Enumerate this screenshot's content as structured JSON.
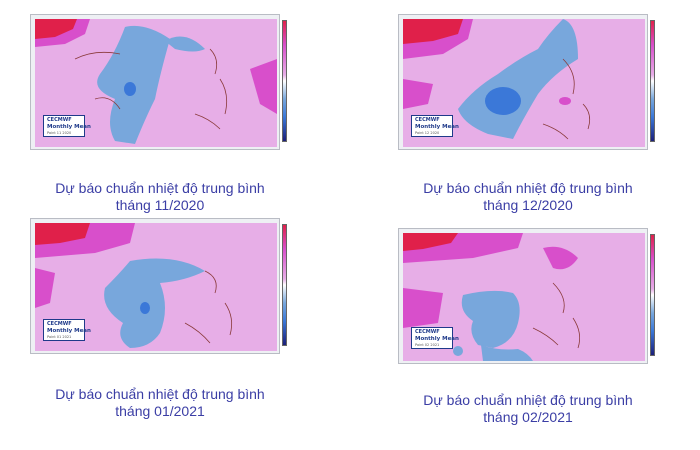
{
  "panels": [
    {
      "caption_line1": "Dự báo chuẩn nhiệt độ trung bình",
      "caption_line2": "tháng 11/2020",
      "legend_title": "Monthly Mean",
      "legend_brand": "CECMWF",
      "legend_sub": "Point 11 2020"
    },
    {
      "caption_line1": "Dự báo chuẩn nhiệt độ trung bình",
      "caption_line2": "tháng 12/2020",
      "legend_title": "Monthly Mean",
      "legend_brand": "CECMWF",
      "legend_sub": "Point 12 2020"
    },
    {
      "caption_line1": "Dự báo chuẩn nhiệt độ trung bình",
      "caption_line2": "tháng 01/2021",
      "legend_title": "Monthly Mean",
      "legend_brand": "CECMWF",
      "legend_sub": "Point 01 2021"
    },
    {
      "caption_line1": "Dự báo chuẩn nhiệt độ trung bình",
      "caption_line2": "tháng 02/2021",
      "legend_title": "Monthly Mean",
      "legend_brand": "CECMWF",
      "legend_sub": "Point 02 2021"
    }
  ],
  "colors": {
    "land_pink": "#e7aee7",
    "warm_magenta": "#d84fcb",
    "hot_red": "#e0204a",
    "cool_blue": "#78a7dc",
    "deep_blue": "#3b78d8",
    "caption_text": "#3b3ea5",
    "border_line": "#8a3a3a"
  },
  "colorbar_ticks": [
    "",
    "",
    "",
    "",
    "",
    "",
    ""
  ]
}
